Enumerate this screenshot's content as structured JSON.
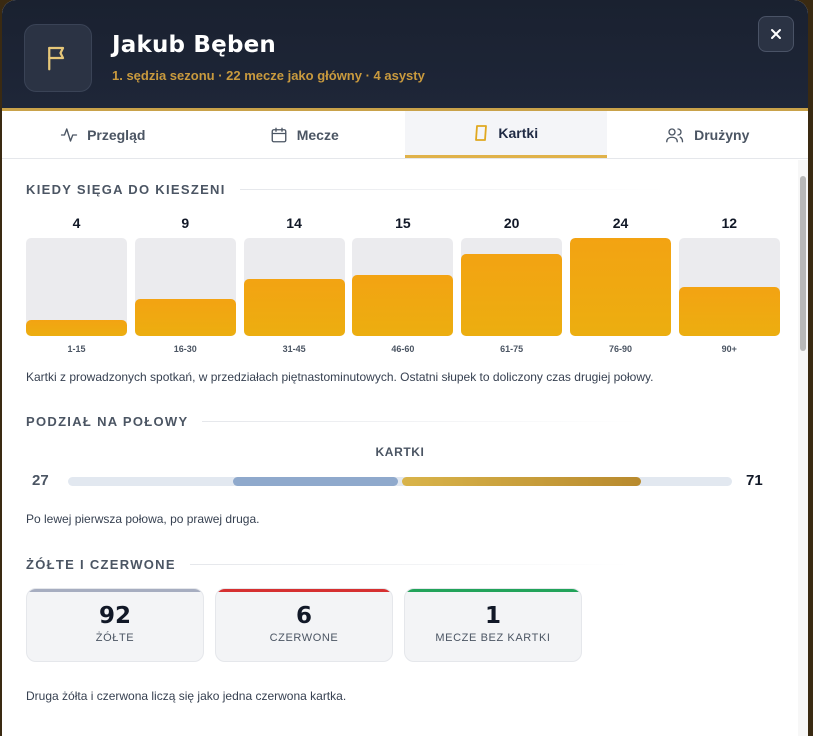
{
  "header": {
    "name": "Jakub Bęben",
    "subtitle": "1. sędzia sezonu · 22 mecze jako główny · 4 asysty"
  },
  "tabs": [
    {
      "label": "Przegląd",
      "icon": "activity-icon"
    },
    {
      "label": "Mecze",
      "icon": "calendar-icon"
    },
    {
      "label": "Kartki",
      "icon": "card-icon",
      "active": true
    },
    {
      "label": "Drużyny",
      "icon": "users-icon"
    }
  ],
  "when": {
    "title": "KIEDY SIĘGA DO KIESZENI",
    "note": "Kartki z prowadzonych spotkań, w przedziałach piętnastominutowych. Ostatni słupek to doliczony czas drugiej połowy."
  },
  "chart_data": {
    "type": "bar",
    "categories": [
      "1-15",
      "16-30",
      "31-45",
      "46-60",
      "61-75",
      "76-90",
      "90+"
    ],
    "values": [
      4,
      9,
      14,
      15,
      20,
      24,
      12
    ],
    "ylim": [
      0,
      24
    ]
  },
  "halves": {
    "title": "PODZIAŁ NA POŁOWY",
    "label": "KARTKI",
    "first": 27,
    "second": 71,
    "note": "Po lewej pierwsza połowa, po prawej druga."
  },
  "colors": {
    "first_half": "#8fa9cc",
    "second_half": "#c9a23c",
    "yellow_bar": "#a6adc0",
    "red_bar": "#d63031",
    "green_bar": "#22a35a"
  },
  "cards": {
    "title": "ŻÓŁTE I CZERWONE",
    "items": [
      {
        "value": "92",
        "label": "ŻÓŁTE"
      },
      {
        "value": "6",
        "label": "CZERWONE"
      },
      {
        "value": "1",
        "label": "MECZE BEZ KARTKI"
      }
    ],
    "note": "Druga żółta i czerwona liczą się jako jedna czerwona kartka."
  }
}
